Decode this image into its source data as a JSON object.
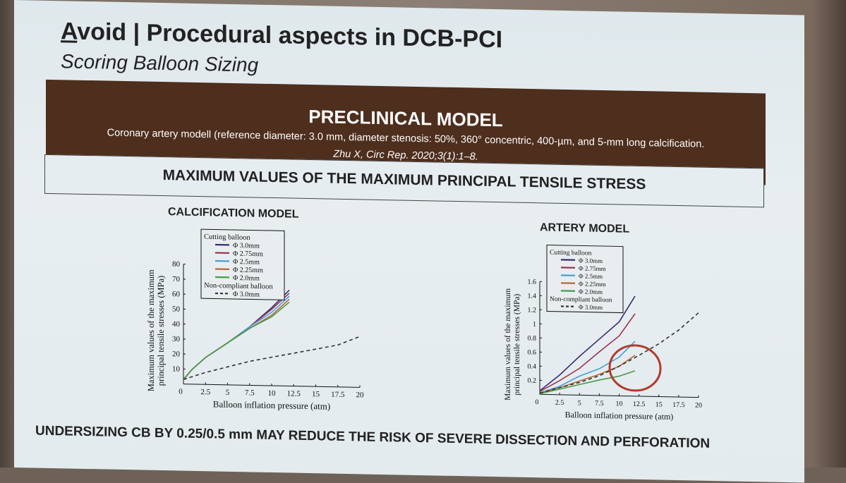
{
  "slide": {
    "title_underlined": "A",
    "title_rest": "void | Procedural aspects in DCB-PCI",
    "subtitle": "Scoring Balloon Sizing",
    "banner_title": "PRECLINICAL MODEL",
    "banner_description": "Coronary artery modell (reference diameter: 3.0 mm, diameter stenosis: 50%, 360° concentric, 400-µm, and 5-mm long calcification.",
    "banner_citation": "Zhu X, Circ Rep. 2020;3(1):1–8.",
    "section_heading": "MAXIMUM VALUES OF THE MAXIMUM PRINCIPAL TENSILE STRESS",
    "footer": "UNDERSIZING CB BY 0.25/0.5 mm MAY REDUCE THE RISK OF SEVERE DISSECTION AND PERFORATION",
    "highlight_color": "#b23a2e"
  },
  "chart_data": [
    {
      "type": "line",
      "title": "CALCIFICATION MODEL",
      "xlabel": "Balloon inflation pressure (atm)",
      "ylabel": "Maximum values of the maximum principal tensile stresses (MPa)",
      "xlim": [
        0,
        20
      ],
      "ylim": [
        0,
        80
      ],
      "xticks": [
        2.5,
        5,
        7.5,
        10,
        12.5,
        15,
        17.5,
        20
      ],
      "yticks": [
        10,
        20,
        30,
        40,
        50,
        60,
        70,
        80
      ],
      "legend_position": "top-left",
      "legend_groups": [
        {
          "title": "Cutting balloon",
          "entries": [
            "Φ 3.0mm",
            "Φ 2.75mm",
            "Φ 2.5mm",
            "Φ 2.25mm",
            "Φ 2.0mm"
          ]
        },
        {
          "title": "Non-compliant balloon",
          "entries": [
            "Φ 3.0mm"
          ]
        }
      ],
      "series": [
        {
          "name": "Φ 3.0mm",
          "group": "Cutting balloon",
          "color": "#3b2a78",
          "dash": false,
          "x": [
            0,
            1,
            2.5,
            5,
            7.5,
            10,
            12
          ],
          "y": [
            3,
            10,
            18,
            28,
            39,
            52,
            64
          ]
        },
        {
          "name": "Φ 2.75mm",
          "group": "Cutting balloon",
          "color": "#9b3550",
          "dash": false,
          "x": [
            0,
            1,
            2.5,
            5,
            7.5,
            10,
            12
          ],
          "y": [
            3,
            10,
            18,
            28,
            39,
            51,
            62
          ]
        },
        {
          "name": "Φ 2.5mm",
          "group": "Cutting balloon",
          "color": "#4a9fd8",
          "dash": false,
          "x": [
            0,
            1,
            2.5,
            5,
            7.5,
            10,
            12
          ],
          "y": [
            3,
            10,
            18,
            28,
            39,
            49,
            60
          ]
        },
        {
          "name": "Φ 2.25mm",
          "group": "Cutting balloon",
          "color": "#b5673a",
          "dash": false,
          "x": [
            0,
            1,
            2.5,
            5,
            7.5,
            10,
            12
          ],
          "y": [
            3,
            10,
            18,
            28,
            38,
            47,
            58
          ]
        },
        {
          "name": "Φ 2.0mm",
          "group": "Cutting balloon",
          "color": "#4a9a4a",
          "dash": false,
          "x": [
            0,
            1,
            2.5,
            5,
            7.5,
            10,
            12
          ],
          "y": [
            3,
            10,
            18,
            28,
            38,
            46,
            56
          ]
        },
        {
          "name": "Φ 3.0mm",
          "group": "Non-compliant balloon",
          "color": "#333333",
          "dash": true,
          "x": [
            0,
            2.5,
            5,
            7.5,
            10,
            12.5,
            15,
            17.5,
            20
          ],
          "y": [
            3,
            8,
            12,
            16,
            19,
            22,
            25,
            28,
            34
          ]
        }
      ]
    },
    {
      "type": "line",
      "title": "ARTERY MODEL",
      "xlabel": "Balloon inflation pressure (atm)",
      "ylabel": "Maximum values of the maximum principal tensile stresses (MPa)",
      "xlim": [
        0,
        20
      ],
      "ylim": [
        0,
        1.6
      ],
      "xticks": [
        2.5,
        5,
        7.5,
        10,
        12.5,
        15,
        17.5,
        20
      ],
      "yticks": [
        0.2,
        0.4,
        0.6,
        0.8,
        1.0,
        1.2,
        1.4,
        1.6
      ],
      "legend_position": "top-left",
      "legend_groups": [
        {
          "title": "Cutting balloon",
          "entries": [
            "Φ 3.0mm",
            "Φ 2.75mm",
            "Φ 2.5mm",
            "Φ 2.25mm",
            "Φ 2.0mm"
          ]
        },
        {
          "title": "Non-compliant balloon",
          "entries": [
            "Φ 3.0mm"
          ]
        }
      ],
      "series": [
        {
          "name": "Φ 3.0mm",
          "group": "Cutting balloon",
          "color": "#3b2a78",
          "dash": false,
          "x": [
            0,
            2.5,
            5,
            7.5,
            10,
            12
          ],
          "y": [
            0.05,
            0.28,
            0.55,
            0.8,
            1.05,
            1.42
          ]
        },
        {
          "name": "Φ 2.75mm",
          "group": "Cutting balloon",
          "color": "#9b3550",
          "dash": false,
          "x": [
            0,
            2.5,
            5,
            7.5,
            10,
            12
          ],
          "y": [
            0.04,
            0.2,
            0.38,
            0.62,
            0.85,
            1.17
          ]
        },
        {
          "name": "Φ 2.5mm",
          "group": "Cutting balloon",
          "color": "#4a9fd8",
          "dash": false,
          "x": [
            0,
            2.5,
            5,
            7.5,
            10,
            12
          ],
          "y": [
            0.02,
            0.12,
            0.27,
            0.38,
            0.55,
            0.78
          ]
        },
        {
          "name": "Φ 2.25mm",
          "group": "Cutting balloon",
          "color": "#b5673a",
          "dash": false,
          "x": [
            0,
            2.5,
            5,
            7.5,
            10,
            12
          ],
          "y": [
            0.02,
            0.1,
            0.2,
            0.3,
            0.42,
            0.58
          ]
        },
        {
          "name": "Φ 2.0mm",
          "group": "Cutting balloon",
          "color": "#4a9a4a",
          "dash": false,
          "x": [
            0,
            2.5,
            5,
            7.5,
            10,
            12
          ],
          "y": [
            0.01,
            0.08,
            0.15,
            0.22,
            0.28,
            0.36
          ]
        },
        {
          "name": "Φ 3.0mm",
          "group": "Non-compliant balloon",
          "color": "#333333",
          "dash": true,
          "x": [
            0,
            2.5,
            5,
            7.5,
            10,
            12.5,
            15,
            17.5,
            20
          ],
          "y": [
            0.02,
            0.1,
            0.18,
            0.28,
            0.42,
            0.58,
            0.75,
            0.95,
            1.2
          ]
        }
      ],
      "highlight": {
        "x": 12,
        "y": 0.4
      }
    }
  ]
}
